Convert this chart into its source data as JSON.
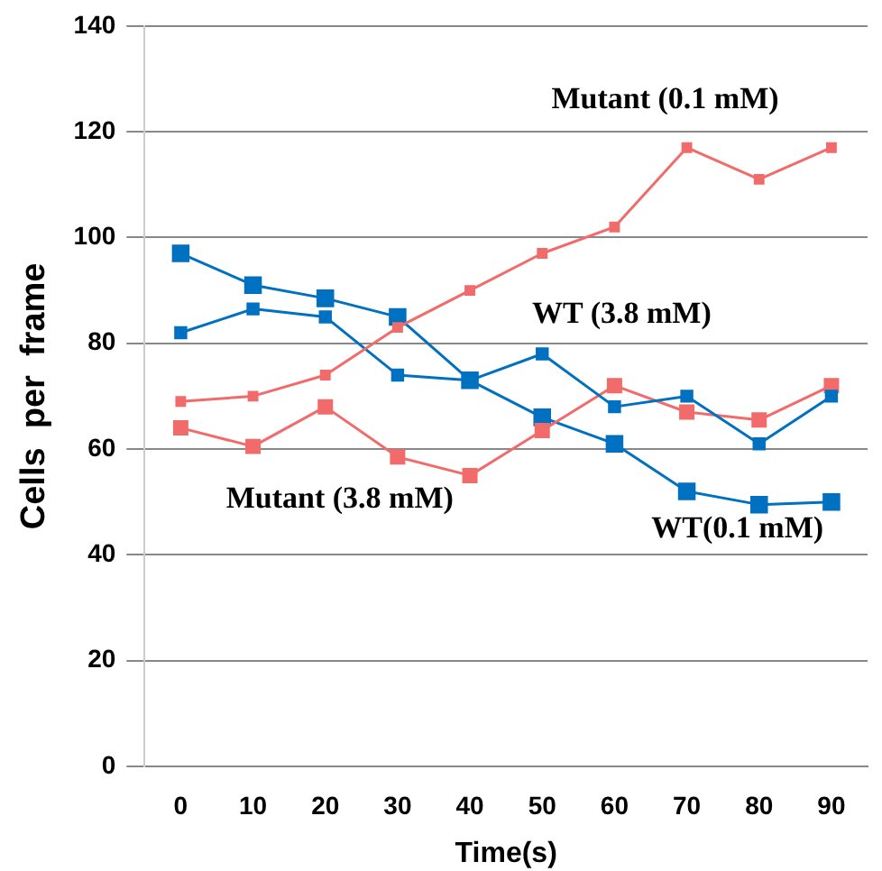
{
  "chart_data": {
    "type": "line",
    "xlabel": "Time(s)",
    "ylabel": "Cells  per  frame",
    "categories": [
      "0",
      "10",
      "20",
      "30",
      "40",
      "50",
      "60",
      "70",
      "80",
      "90"
    ],
    "series": [
      {
        "name": "Mutant (0.1 mM)",
        "color": "#f26b6b",
        "values": [
          69,
          70,
          74,
          83,
          90,
          97,
          102,
          117,
          111,
          117
        ]
      },
      {
        "name": "WT (3.8 mM)",
        "color": "#0070c0",
        "values": [
          82,
          86.5,
          85,
          74,
          73,
          78,
          68,
          70,
          61,
          70
        ]
      },
      {
        "name": "Mutant (3.8 mM)",
        "color": "#f26b6b",
        "values": [
          64,
          60.5,
          68,
          58.5,
          55,
          63.5,
          72,
          67,
          65.5,
          72
        ]
      },
      {
        "name": "WT(0.1 mM)",
        "color": "#0070c0",
        "values": [
          97,
          91,
          88.5,
          85,
          73,
          66,
          61,
          52,
          49.5,
          50
        ]
      }
    ],
    "ylim": [
      0,
      140
    ],
    "yticks": [
      0,
      20,
      40,
      60,
      80,
      100,
      120,
      140
    ],
    "grid": "y",
    "legend": false,
    "marker": "square",
    "line_style": "solid"
  }
}
